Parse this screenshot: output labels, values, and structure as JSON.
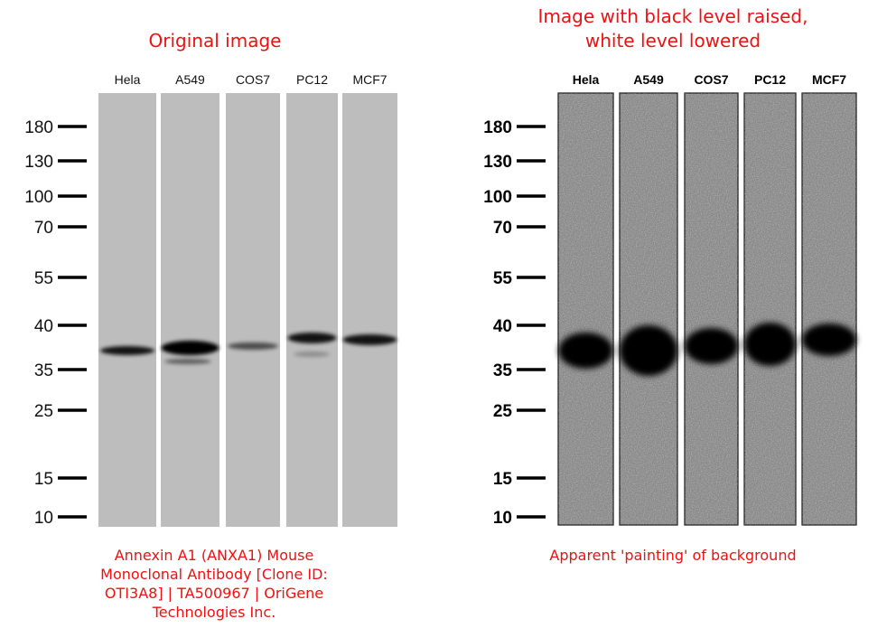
{
  "left_panel": {
    "title": "Original image",
    "lanes": [
      "Hela",
      "A549",
      "COS7",
      "PC12",
      "MCF7"
    ],
    "markers": [
      180,
      130,
      100,
      70,
      55,
      40,
      35,
      25,
      15,
      10
    ],
    "caption_lines": [
      "Annexin A1 (ANXA1) Mouse",
      "Monoclonal Antibody [Clone ID:",
      "OTI3A8] | TA500967 | OriGene",
      "Technologies Inc."
    ]
  },
  "right_panel": {
    "title_lines": [
      "Image with black level raised,",
      "white level lowered"
    ],
    "lanes": [
      "Hela",
      "A549",
      "COS7",
      "PC12",
      "MCF7"
    ],
    "markers": [
      180,
      130,
      100,
      70,
      55,
      40,
      35,
      25,
      15,
      10
    ],
    "caption": "Apparent 'painting' of background"
  }
}
